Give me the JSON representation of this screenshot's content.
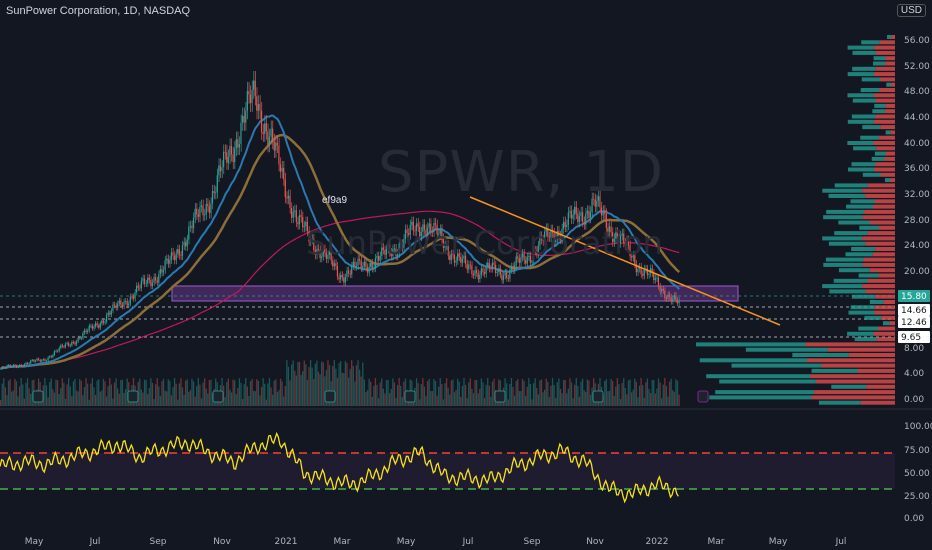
{
  "header": {
    "symbol_title": "SunPower Corporation, 1D, NASDAQ",
    "currency": "USD"
  },
  "watermark": {
    "ticker": "SPWR, 1D",
    "name": "SunPower Corporation"
  },
  "annotation": {
    "text": "ef9a9"
  },
  "colors": {
    "background": "#131722",
    "up": "#26a69a",
    "down": "#ef5350",
    "rsi": "#f5e11d",
    "trendline": "#f7931e",
    "zone": "#7b3fa0",
    "ma_fast": "#2a7ab0",
    "ma_red": "#c2185b",
    "rsi_upper": "#f44336",
    "rsi_lower": "#4caf50"
  },
  "chart_data": [
    {
      "type": "candlestick",
      "title": "SunPower Corporation, 1D, NASDAQ",
      "y_axis": {
        "ticks": [
          "56.00",
          "52.00",
          "48.00",
          "44.00",
          "40.00",
          "36.00",
          "32.00",
          "28.00",
          "24.00",
          "20.00",
          "8.00",
          "4.00",
          "0.00"
        ],
        "ylim": [
          0,
          58
        ]
      },
      "x_axis": {
        "ticks": [
          "May",
          "Jul",
          "Sep",
          "Nov",
          "2021",
          "Mar",
          "May",
          "Jul",
          "Sep",
          "Nov",
          "2022",
          "Mar",
          "May",
          "Jul"
        ]
      },
      "price_labels": [
        {
          "value": "15.80",
          "style": "highlight"
        },
        {
          "value": "14.66",
          "style": "plain"
        },
        {
          "value": "12.46",
          "style": "plain"
        },
        {
          "value": "9.65",
          "style": "plain"
        }
      ],
      "key_points": [
        {
          "date": "2020-05",
          "close": 5.0
        },
        {
          "date": "2020-07",
          "close": 6.5
        },
        {
          "date": "2020-09",
          "close": 11.0
        },
        {
          "date": "2020-10",
          "close": 17.0
        },
        {
          "date": "2020-12",
          "close": 23.0
        },
        {
          "date": "2021-01",
          "close": 35.0
        },
        {
          "date": "2021-02",
          "close": 52.0
        },
        {
          "date": "2021-03",
          "close": 30.0
        },
        {
          "date": "2021-05",
          "close": 21.0
        },
        {
          "date": "2021-06",
          "close": 24.0
        },
        {
          "date": "2021-07",
          "close": 30.0
        },
        {
          "date": "2021-08",
          "close": 22.0
        },
        {
          "date": "2021-09",
          "close": 21.5
        },
        {
          "date": "2021-10",
          "close": 28.0
        },
        {
          "date": "2021-11",
          "close": 33.0
        },
        {
          "date": "2021-12",
          "close": 23.0
        },
        {
          "date": "2022-01",
          "close": 15.8
        }
      ],
      "support_zone": [
        16.8,
        18.0
      ],
      "trendline": {
        "from": {
          "date": "2021-07",
          "price": 32.0
        },
        "to": {
          "date": "2022-03",
          "price": 12.0
        }
      }
    },
    {
      "type": "line",
      "name": "RSI",
      "y_axis": {
        "ticks": [
          "100.00",
          "75.00",
          "50.00",
          "25.00",
          "0.00"
        ],
        "ylim": [
          0,
          100
        ]
      },
      "levels": [
        70,
        30
      ],
      "values": [
        55,
        60,
        58,
        65,
        72,
        80,
        66,
        75,
        82,
        70,
        60,
        78,
        85,
        48,
        40,
        35,
        45,
        62,
        70,
        44,
        42,
        40,
        55,
        65,
        72,
        60,
        30,
        24,
        35,
        28
      ]
    }
  ]
}
